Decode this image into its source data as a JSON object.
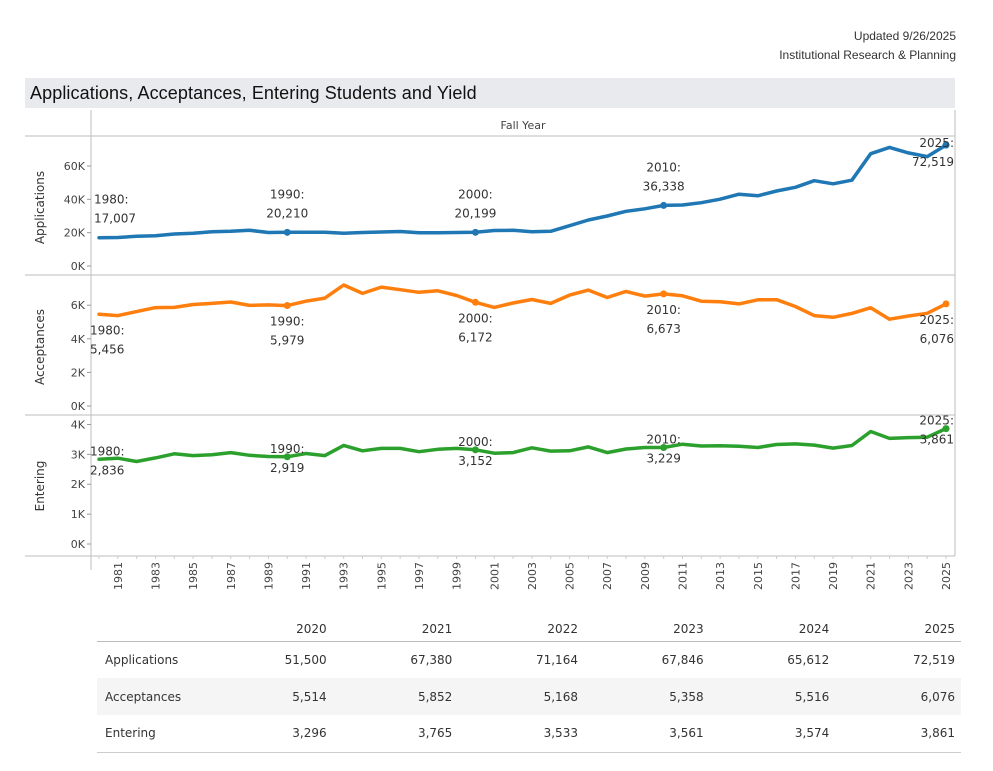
{
  "header": {
    "updated": "Updated 9/26/2025",
    "org": "Institutional Research & Planning",
    "title": "Applications, Acceptances, Entering Students and Yield"
  },
  "chart_data": {
    "type": "line",
    "title": "Applications, Acceptances, Entering Students and Yield",
    "xlabel": "Fall Year",
    "x": [
      1980,
      1981,
      1982,
      1983,
      1984,
      1985,
      1986,
      1987,
      1988,
      1989,
      1990,
      1991,
      1992,
      1993,
      1994,
      1995,
      1996,
      1997,
      1998,
      1999,
      2000,
      2001,
      2002,
      2003,
      2004,
      2005,
      2006,
      2007,
      2008,
      2009,
      2010,
      2011,
      2012,
      2013,
      2014,
      2015,
      2016,
      2017,
      2018,
      2019,
      2020,
      2021,
      2022,
      2023,
      2024,
      2025
    ],
    "x_tick_labels": [
      "1981",
      "1983",
      "1985",
      "1987",
      "1989",
      "1991",
      "1993",
      "1995",
      "1997",
      "1999",
      "2001",
      "2003",
      "2005",
      "2007",
      "2009",
      "2011",
      "2013",
      "2015",
      "2017",
      "2019",
      "2021",
      "2023",
      "2025"
    ],
    "grid": false,
    "panels": [
      {
        "name": "Applications",
        "ylabel": "Applications",
        "color": "#1f77b4",
        "ylim": [
          0,
          75000
        ],
        "yticks": [
          0,
          20000,
          40000,
          60000
        ],
        "ytick_labels": [
          "0K",
          "20K",
          "40K",
          "60K"
        ],
        "values": [
          17007,
          17100,
          17800,
          18200,
          19200,
          19600,
          20600,
          20800,
          21400,
          20100,
          20210,
          20300,
          20300,
          19600,
          20100,
          20400,
          20700,
          20000,
          20000,
          20100,
          20199,
          21300,
          21400,
          20600,
          20800,
          24200,
          27600,
          30000,
          32800,
          34300,
          36338,
          36600,
          38000,
          40100,
          43100,
          42100,
          45000,
          47200,
          51200,
          49300,
          51500,
          67380,
          71164,
          67846,
          65612,
          72519
        ],
        "annotations": [
          {
            "year": 1980,
            "label": "1980:",
            "value": "17,007"
          },
          {
            "year": 1990,
            "label": "1990:",
            "value": "20,210"
          },
          {
            "year": 2000,
            "label": "2000:",
            "value": "20,199"
          },
          {
            "year": 2010,
            "label": "2010:",
            "value": "36,338"
          },
          {
            "year": 2025,
            "label": "2025:",
            "value": "72,519"
          }
        ]
      },
      {
        "name": "Acceptances",
        "ylabel": "Acceptances",
        "color": "#ff7f0e",
        "ylim": [
          0,
          7500
        ],
        "yticks": [
          0,
          2000,
          4000,
          6000
        ],
        "ytick_labels": [
          "0K",
          "2K",
          "4K",
          "6K"
        ],
        "values": [
          5456,
          5380,
          5620,
          5860,
          5870,
          6040,
          6110,
          6190,
          5990,
          6020,
          5979,
          6240,
          6420,
          7200,
          6700,
          7080,
          6920,
          6770,
          6860,
          6580,
          6172,
          5870,
          6130,
          6340,
          6110,
          6600,
          6900,
          6460,
          6820,
          6540,
          6673,
          6560,
          6240,
          6210,
          6080,
          6320,
          6330,
          5920,
          5380,
          5280,
          5514,
          5852,
          5168,
          5358,
          5516,
          6076
        ],
        "annotations": [
          {
            "year": 1980,
            "label": "1980:",
            "value": "5,456"
          },
          {
            "year": 1990,
            "label": "1990:",
            "value": "5,979"
          },
          {
            "year": 2000,
            "label": "2000:",
            "value": "6,172"
          },
          {
            "year": 2010,
            "label": "2010:",
            "value": "6,673"
          },
          {
            "year": 2025,
            "label": "2025:",
            "value": "6,076"
          }
        ]
      },
      {
        "name": "Entering",
        "ylabel": "Entering",
        "color": "#2ca02c",
        "ylim": [
          0,
          4150
        ],
        "yticks": [
          0,
          1000,
          2000,
          3000,
          4000
        ],
        "ytick_labels": [
          "0K",
          "1K",
          "2K",
          "3K",
          "4K"
        ],
        "values": [
          2836,
          2870,
          2760,
          2880,
          3020,
          2960,
          2990,
          3060,
          2970,
          2930,
          2919,
          3030,
          2960,
          3300,
          3120,
          3200,
          3200,
          3090,
          3170,
          3200,
          3152,
          3040,
          3060,
          3220,
          3110,
          3120,
          3250,
          3060,
          3180,
          3230,
          3229,
          3340,
          3280,
          3290,
          3270,
          3230,
          3330,
          3350,
          3310,
          3210,
          3296,
          3765,
          3533,
          3561,
          3574,
          3861
        ],
        "annotations": [
          {
            "year": 1980,
            "label": "1980:",
            "value": "2,836"
          },
          {
            "year": 1990,
            "label": "1990:",
            "value": "2,919"
          },
          {
            "year": 2000,
            "label": "2000:",
            "value": "3,152"
          },
          {
            "year": 2010,
            "label": "2010:",
            "value": "3,229"
          },
          {
            "year": 2025,
            "label": "2025:",
            "value": "3,861"
          }
        ]
      }
    ]
  },
  "table": {
    "columns": [
      "2020",
      "2021",
      "2022",
      "2023",
      "2024",
      "2025"
    ],
    "rows": [
      {
        "label": "Applications",
        "values": [
          "51,500",
          "67,380",
          "71,164",
          "67,846",
          "65,612",
          "72,519"
        ]
      },
      {
        "label": "Acceptances",
        "values": [
          "5,514",
          "5,852",
          "5,168",
          "5,358",
          "5,516",
          "6,076"
        ]
      },
      {
        "label": "Entering",
        "values": [
          "3,296",
          "3,765",
          "3,533",
          "3,561",
          "3,574",
          "3,861"
        ]
      }
    ]
  }
}
